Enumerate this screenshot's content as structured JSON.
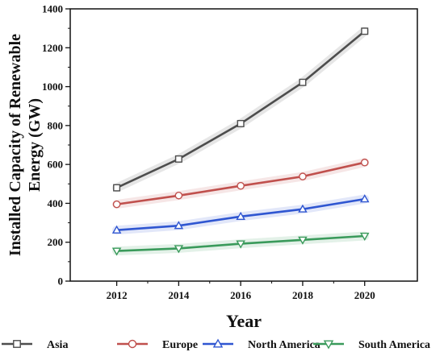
{
  "chart_data": {
    "type": "line",
    "xlabel": "Year",
    "ylabel_lines": [
      "Installed Capacity of Renewable",
      "Energy  (GW)"
    ],
    "x": [
      2012,
      2014,
      2016,
      2018,
      2020
    ],
    "xlim": [
      2010.5,
      2021.7
    ],
    "ylim": [
      0,
      1400
    ],
    "xticks": [
      "2012",
      "2014",
      "2016",
      "2018",
      "2020"
    ],
    "yticks": [
      "0",
      "200",
      "400",
      "600",
      "800",
      "1000",
      "1200",
      "1400"
    ],
    "grid": false,
    "legend_position": "bottom",
    "series": [
      {
        "name": "Asia",
        "color": "#4d4d4d",
        "marker": "square",
        "values": [
          480,
          628,
          810,
          1022,
          1285
        ]
      },
      {
        "name": "Europe",
        "color": "#c0504d",
        "marker": "circle",
        "values": [
          395,
          440,
          490,
          538,
          610
        ]
      },
      {
        "name": "North America",
        "color": "#2f56d1",
        "marker": "triangle-up",
        "values": [
          262,
          285,
          332,
          370,
          422
        ]
      },
      {
        "name": "South America",
        "color": "#3a9a5b",
        "marker": "triangle-down",
        "values": [
          155,
          168,
          192,
          212,
          232
        ]
      }
    ]
  }
}
